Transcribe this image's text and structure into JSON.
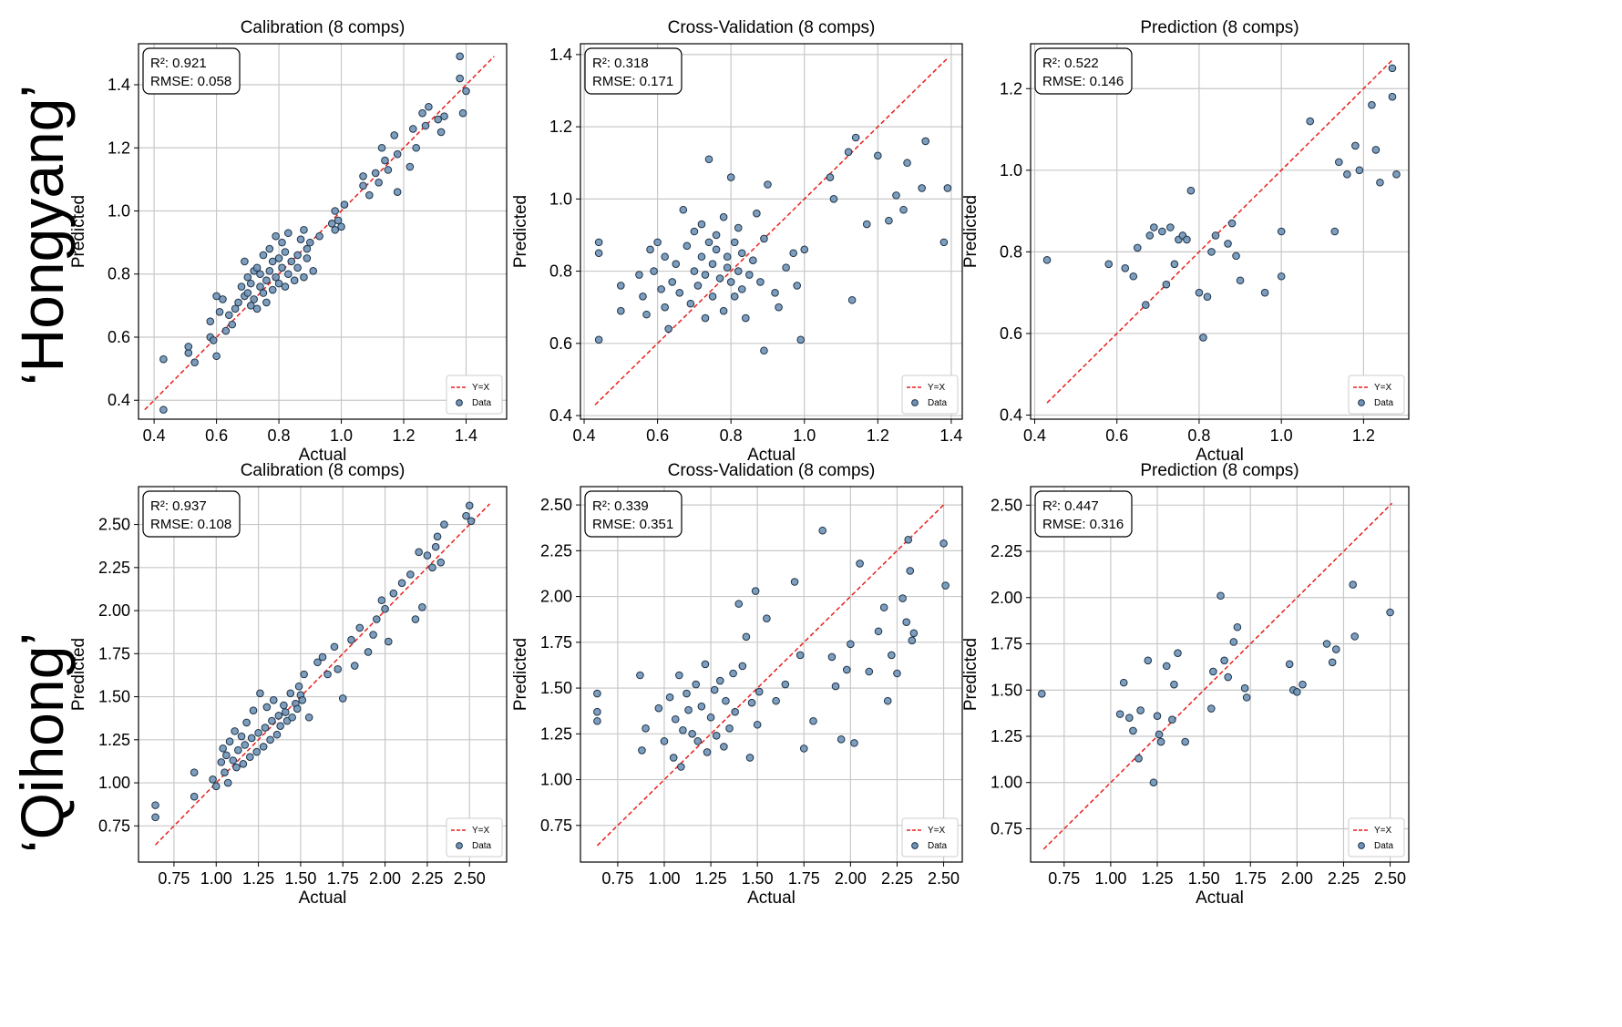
{
  "row_labels": [
    "‘Hongyang’",
    "‘Qihong’"
  ],
  "colors": {
    "data_fill": "#6f93b8",
    "data_edge": "#1f3347",
    "line": "#e8201c",
    "grid": "#c8c8c8",
    "axis": "#000000"
  },
  "chart_data": [
    {
      "type": "scatter",
      "title": "Calibration (8 comps)",
      "xlabel": "Actual",
      "ylabel": "Predicted",
      "stats": {
        "r2": "R²: 0.921",
        "rmse": "RMSE: 0.058"
      },
      "xlim": [
        0.35,
        1.53
      ],
      "ylim": [
        0.34,
        1.53
      ],
      "xticks": [
        "0.4",
        "0.6",
        "0.8",
        "1.0",
        "1.2",
        "1.4"
      ],
      "yticks": [
        "0.4",
        "0.6",
        "0.8",
        "1.0",
        "1.2",
        "1.4"
      ],
      "line": {
        "name": "Y=X",
        "x": [
          0.37,
          1.49
        ],
        "y": [
          0.37,
          1.49
        ]
      },
      "series": {
        "name": "Data",
        "x": [
          0.43,
          0.43,
          0.51,
          0.51,
          0.53,
          0.58,
          0.58,
          0.59,
          0.6,
          0.6,
          0.61,
          0.62,
          0.63,
          0.64,
          0.65,
          0.66,
          0.67,
          0.68,
          0.69,
          0.69,
          0.7,
          0.7,
          0.71,
          0.71,
          0.72,
          0.72,
          0.73,
          0.73,
          0.74,
          0.74,
          0.75,
          0.75,
          0.76,
          0.76,
          0.77,
          0.77,
          0.78,
          0.78,
          0.79,
          0.79,
          0.8,
          0.8,
          0.81,
          0.81,
          0.82,
          0.82,
          0.83,
          0.83,
          0.84,
          0.85,
          0.86,
          0.86,
          0.87,
          0.88,
          0.88,
          0.89,
          0.89,
          0.9,
          0.91,
          0.93,
          0.97,
          0.98,
          0.98,
          0.99,
          1.0,
          1.01,
          1.07,
          1.07,
          1.09,
          1.11,
          1.12,
          1.13,
          1.14,
          1.15,
          1.17,
          1.18,
          1.18,
          1.22,
          1.23,
          1.24,
          1.26,
          1.27,
          1.28,
          1.31,
          1.32,
          1.33,
          1.38,
          1.38,
          1.39,
          1.4
        ],
        "y": [
          0.53,
          0.37,
          0.55,
          0.57,
          0.52,
          0.6,
          0.65,
          0.59,
          0.73,
          0.54,
          0.68,
          0.72,
          0.62,
          0.67,
          0.64,
          0.69,
          0.71,
          0.76,
          0.73,
          0.84,
          0.74,
          0.79,
          0.7,
          0.77,
          0.81,
          0.72,
          0.69,
          0.82,
          0.76,
          0.8,
          0.74,
          0.86,
          0.71,
          0.78,
          0.81,
          0.88,
          0.75,
          0.84,
          0.79,
          0.92,
          0.77,
          0.85,
          0.82,
          0.9,
          0.76,
          0.87,
          0.8,
          0.93,
          0.84,
          0.78,
          0.86,
          0.82,
          0.91,
          0.79,
          0.94,
          0.85,
          0.88,
          0.9,
          0.81,
          0.92,
          0.96,
          0.94,
          1.0,
          0.97,
          0.95,
          1.02,
          1.08,
          1.11,
          1.05,
          1.12,
          1.09,
          1.2,
          1.16,
          1.13,
          1.24,
          1.06,
          1.18,
          1.14,
          1.26,
          1.2,
          1.31,
          1.27,
          1.33,
          1.29,
          1.25,
          1.3,
          1.42,
          1.49,
          1.31,
          1.38
        ]
      }
    },
    {
      "type": "scatter",
      "title": "Cross-Validation (8 comps)",
      "xlabel": "Actual",
      "ylabel": "Predicted",
      "stats": {
        "r2": "R²: 0.318",
        "rmse": "RMSE: 0.171"
      },
      "xlim": [
        0.39,
        1.43
      ],
      "ylim": [
        0.39,
        1.43
      ],
      "xticks": [
        "0.4",
        "0.6",
        "0.8",
        "1.0",
        "1.2",
        "1.4"
      ],
      "yticks": [
        "0.4",
        "0.6",
        "0.8",
        "1.0",
        "1.2",
        "1.4"
      ],
      "line": {
        "name": "Y=X",
        "x": [
          0.43,
          1.39
        ],
        "y": [
          0.43,
          1.39
        ]
      },
      "series": {
        "name": "Data",
        "x": [
          0.44,
          0.44,
          0.44,
          0.5,
          0.5,
          0.55,
          0.56,
          0.57,
          0.58,
          0.59,
          0.6,
          0.61,
          0.62,
          0.62,
          0.63,
          0.64,
          0.65,
          0.66,
          0.67,
          0.68,
          0.69,
          0.7,
          0.7,
          0.71,
          0.72,
          0.72,
          0.73,
          0.73,
          0.74,
          0.74,
          0.75,
          0.75,
          0.76,
          0.76,
          0.77,
          0.78,
          0.78,
          0.79,
          0.79,
          0.8,
          0.8,
          0.81,
          0.81,
          0.82,
          0.82,
          0.83,
          0.83,
          0.84,
          0.85,
          0.86,
          0.87,
          0.88,
          0.89,
          0.89,
          0.9,
          0.92,
          0.93,
          0.95,
          0.97,
          0.98,
          0.99,
          1.0,
          1.07,
          1.08,
          1.12,
          1.13,
          1.14,
          1.17,
          1.2,
          1.23,
          1.25,
          1.27,
          1.28,
          1.32,
          1.33,
          1.38,
          1.39
        ],
        "y": [
          0.88,
          0.85,
          0.61,
          0.76,
          0.69,
          0.79,
          0.73,
          0.68,
          0.86,
          0.8,
          0.88,
          0.75,
          0.7,
          0.84,
          0.64,
          0.77,
          0.82,
          0.74,
          0.97,
          0.87,
          0.71,
          0.91,
          0.8,
          0.76,
          0.84,
          0.93,
          0.67,
          0.79,
          0.88,
          1.11,
          0.73,
          0.82,
          0.86,
          0.9,
          0.78,
          0.95,
          0.69,
          0.84,
          0.81,
          0.77,
          1.06,
          0.73,
          0.88,
          0.8,
          0.92,
          0.75,
          0.85,
          0.67,
          0.79,
          0.83,
          0.96,
          0.77,
          0.58,
          0.89,
          1.04,
          0.74,
          0.7,
          0.81,
          0.85,
          0.76,
          0.61,
          0.86,
          1.06,
          1.0,
          1.13,
          0.72,
          1.17,
          0.93,
          1.12,
          0.94,
          1.01,
          0.97,
          1.1,
          1.03,
          1.16,
          0.88,
          1.03
        ]
      }
    },
    {
      "type": "scatter",
      "title": "Prediction (8 comps)",
      "xlabel": "Actual",
      "ylabel": "Predicted",
      "stats": {
        "r2": "R²: 0.522",
        "rmse": "RMSE: 0.146"
      },
      "xlim": [
        0.39,
        1.31
      ],
      "ylim": [
        0.39,
        1.31
      ],
      "xticks": [
        "0.4",
        "0.6",
        "0.8",
        "1.0",
        "1.2"
      ],
      "yticks": [
        "0.4",
        "0.6",
        "0.8",
        "1.0",
        "1.2"
      ],
      "line": {
        "name": "Y=X",
        "x": [
          0.43,
          1.27
        ],
        "y": [
          0.43,
          1.27
        ]
      },
      "series": {
        "name": "Data",
        "x": [
          0.43,
          0.58,
          0.62,
          0.64,
          0.65,
          0.67,
          0.68,
          0.69,
          0.71,
          0.72,
          0.73,
          0.74,
          0.75,
          0.76,
          0.77,
          0.78,
          0.8,
          0.81,
          0.82,
          0.83,
          0.84,
          0.87,
          0.88,
          0.89,
          0.9,
          0.96,
          1.0,
          1.0,
          1.07,
          1.13,
          1.14,
          1.16,
          1.18,
          1.19,
          1.22,
          1.23,
          1.24,
          1.27,
          1.27,
          1.28
        ],
        "y": [
          0.78,
          0.77,
          0.76,
          0.74,
          0.81,
          0.67,
          0.84,
          0.86,
          0.85,
          0.72,
          0.86,
          0.77,
          0.83,
          0.84,
          0.83,
          0.95,
          0.7,
          0.59,
          0.69,
          0.8,
          0.84,
          0.82,
          0.87,
          0.79,
          0.73,
          0.7,
          0.85,
          0.74,
          1.12,
          0.85,
          1.02,
          0.99,
          1.06,
          1.0,
          1.16,
          1.05,
          0.97,
          1.25,
          1.18,
          0.99
        ]
      }
    },
    {
      "type": "scatter",
      "title": "Calibration (8 comps)",
      "xlabel": "Actual",
      "ylabel": "Predicted",
      "stats": {
        "r2": "R²: 0.937",
        "rmse": "RMSE: 0.108"
      },
      "xlim": [
        0.54,
        2.72
      ],
      "ylim": [
        0.54,
        2.72
      ],
      "xticks": [
        "0.75",
        "1.00",
        "1.25",
        "1.50",
        "1.75",
        "2.00",
        "2.25",
        "2.50"
      ],
      "yticks": [
        "0.75",
        "1.00",
        "1.25",
        "1.50",
        "1.75",
        "2.00",
        "2.25",
        "2.50"
      ],
      "line": {
        "name": "Y=X",
        "x": [
          0.64,
          2.62
        ],
        "y": [
          0.64,
          2.62
        ]
      },
      "series": {
        "name": "Data",
        "x": [
          0.64,
          0.64,
          0.87,
          0.87,
          0.98,
          1.0,
          1.03,
          1.04,
          1.05,
          1.06,
          1.07,
          1.08,
          1.1,
          1.11,
          1.12,
          1.13,
          1.15,
          1.16,
          1.17,
          1.18,
          1.2,
          1.21,
          1.22,
          1.24,
          1.25,
          1.26,
          1.28,
          1.29,
          1.3,
          1.32,
          1.33,
          1.34,
          1.36,
          1.37,
          1.38,
          1.4,
          1.41,
          1.42,
          1.44,
          1.45,
          1.47,
          1.48,
          1.49,
          1.5,
          1.51,
          1.52,
          1.55,
          1.6,
          1.63,
          1.66,
          1.7,
          1.72,
          1.75,
          1.8,
          1.82,
          1.85,
          1.9,
          1.93,
          1.95,
          1.98,
          2.0,
          2.02,
          2.05,
          2.1,
          2.15,
          2.18,
          2.2,
          2.22,
          2.25,
          2.28,
          2.3,
          2.31,
          2.33,
          2.35,
          2.48,
          2.5,
          2.51
        ],
        "y": [
          0.87,
          0.8,
          0.92,
          1.06,
          1.02,
          0.98,
          1.12,
          1.2,
          1.06,
          1.16,
          1.0,
          1.24,
          1.13,
          1.3,
          1.09,
          1.19,
          1.27,
          1.11,
          1.22,
          1.35,
          1.15,
          1.26,
          1.42,
          1.18,
          1.29,
          1.52,
          1.21,
          1.32,
          1.44,
          1.25,
          1.36,
          1.48,
          1.28,
          1.39,
          1.33,
          1.45,
          1.41,
          1.36,
          1.52,
          1.38,
          1.46,
          1.43,
          1.56,
          1.51,
          1.48,
          1.63,
          1.38,
          1.7,
          1.73,
          1.63,
          1.79,
          1.66,
          1.49,
          1.83,
          1.68,
          1.9,
          1.76,
          1.86,
          1.95,
          2.06,
          2.01,
          1.82,
          2.1,
          2.16,
          2.21,
          1.95,
          2.34,
          2.02,
          2.32,
          2.25,
          2.37,
          2.43,
          2.28,
          2.5,
          2.55,
          2.61,
          2.52
        ]
      }
    },
    {
      "type": "scatter",
      "title": "Cross-Validation (8 comps)",
      "xlabel": "Actual",
      "ylabel": "Predicted",
      "stats": {
        "r2": "R²: 0.339",
        "rmse": "RMSE: 0.351"
      },
      "xlim": [
        0.55,
        2.6
      ],
      "ylim": [
        0.55,
        2.6
      ],
      "xticks": [
        "0.75",
        "1.00",
        "1.25",
        "1.50",
        "1.75",
        "2.00",
        "2.25",
        "2.50"
      ],
      "yticks": [
        "0.75",
        "1.00",
        "1.25",
        "1.50",
        "1.75",
        "2.00",
        "2.25",
        "2.50"
      ],
      "line": {
        "name": "Y=X",
        "x": [
          0.64,
          2.51
        ],
        "y": [
          0.64,
          2.51
        ]
      },
      "series": {
        "name": "Data",
        "x": [
          0.64,
          0.64,
          0.64,
          0.87,
          0.88,
          0.9,
          0.97,
          1.0,
          1.03,
          1.05,
          1.06,
          1.08,
          1.09,
          1.1,
          1.12,
          1.13,
          1.15,
          1.17,
          1.18,
          1.2,
          1.22,
          1.23,
          1.25,
          1.27,
          1.28,
          1.3,
          1.32,
          1.33,
          1.35,
          1.37,
          1.38,
          1.4,
          1.42,
          1.44,
          1.46,
          1.47,
          1.49,
          1.5,
          1.51,
          1.55,
          1.6,
          1.65,
          1.7,
          1.73,
          1.75,
          1.8,
          1.85,
          1.9,
          1.92,
          1.95,
          1.98,
          2.0,
          2.02,
          2.05,
          2.1,
          2.15,
          2.18,
          2.2,
          2.22,
          2.25,
          2.28,
          2.3,
          2.31,
          2.32,
          2.33,
          2.34,
          2.5,
          2.51
        ],
        "y": [
          1.47,
          1.37,
          1.32,
          1.57,
          1.16,
          1.28,
          1.39,
          1.21,
          1.45,
          1.12,
          1.33,
          1.57,
          1.07,
          1.27,
          1.47,
          1.38,
          1.25,
          1.52,
          1.21,
          1.4,
          1.63,
          1.15,
          1.34,
          1.49,
          1.24,
          1.54,
          1.18,
          1.43,
          1.28,
          1.58,
          1.37,
          1.96,
          1.62,
          1.78,
          1.12,
          1.42,
          2.03,
          1.3,
          1.48,
          1.88,
          1.43,
          1.52,
          2.08,
          1.68,
          1.17,
          1.32,
          2.36,
          1.67,
          1.51,
          1.22,
          1.6,
          1.74,
          1.2,
          2.18,
          1.59,
          1.81,
          1.94,
          1.43,
          1.68,
          1.58,
          1.99,
          1.86,
          2.31,
          2.14,
          1.76,
          1.8,
          2.29,
          2.06
        ]
      }
    },
    {
      "type": "scatter",
      "title": "Prediction (8 comps)",
      "xlabel": "Actual",
      "ylabel": "Predicted",
      "stats": {
        "r2": "R²: 0.447",
        "rmse": "RMSE: 0.316"
      },
      "xlim": [
        0.57,
        2.6
      ],
      "ylim": [
        0.57,
        2.6
      ],
      "xticks": [
        "0.75",
        "1.00",
        "1.25",
        "1.50",
        "1.75",
        "2.00",
        "2.25",
        "2.50"
      ],
      "yticks": [
        "0.75",
        "1.00",
        "1.25",
        "1.50",
        "1.75",
        "2.00",
        "2.25",
        "2.50"
      ],
      "line": {
        "name": "Y=X",
        "x": [
          0.64,
          2.51
        ],
        "y": [
          0.64,
          2.51
        ]
      },
      "series": {
        "name": "Data",
        "x": [
          0.63,
          1.05,
          1.07,
          1.1,
          1.12,
          1.15,
          1.16,
          1.2,
          1.23,
          1.25,
          1.26,
          1.27,
          1.3,
          1.33,
          1.34,
          1.36,
          1.4,
          1.54,
          1.55,
          1.59,
          1.61,
          1.63,
          1.66,
          1.68,
          1.72,
          1.73,
          1.96,
          1.98,
          2.0,
          2.03,
          2.16,
          2.19,
          2.21,
          2.3,
          2.31,
          2.5
        ],
        "y": [
          1.48,
          1.37,
          1.54,
          1.35,
          1.28,
          1.13,
          1.39,
          1.66,
          1.0,
          1.36,
          1.26,
          1.22,
          1.63,
          1.34,
          1.53,
          1.7,
          1.22,
          1.4,
          1.6,
          2.01,
          1.66,
          1.57,
          1.76,
          1.84,
          1.51,
          1.46,
          1.64,
          1.5,
          1.49,
          1.53,
          1.75,
          1.65,
          1.72,
          2.07,
          1.79,
          1.92
        ]
      }
    }
  ]
}
